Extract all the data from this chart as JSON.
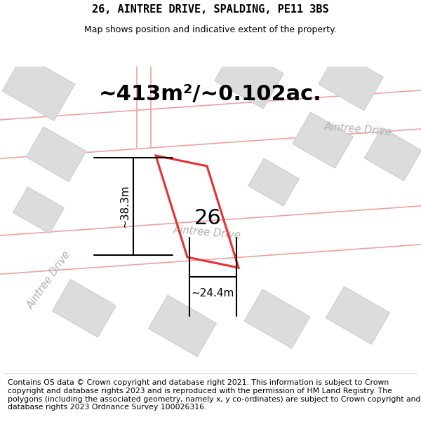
{
  "title": "26, AINTREE DRIVE, SPALDING, PE11 3BS",
  "subtitle": "Map shows position and indicative extent of the property.",
  "area_label": "~413m²/~0.102ac.",
  "label_26": "26",
  "dim_height": "~38.3m",
  "dim_width": "~24.4m",
  "road_label_mid": "Aintree Drive",
  "road_label_right": "Aintree Drive",
  "road_label_left": "Aintree Drive",
  "footer": "Contains OS data © Crown copyright and database right 2021. This information is subject to Crown copyright and database rights 2023 and is reproduced with the permission of HM Land Registry. The polygons (including the associated geometry, namely x, y co-ordinates) are subject to Crown copyright and database rights 2023 Ordnance Survey 100026316.",
  "bg_color": "#ffffff",
  "map_bg": "#f0eeee",
  "building_fill": "#dcdcdc",
  "building_edge": "#cccccc",
  "road_line_color": "#f0a0a0",
  "property_color": "#e83030",
  "title_fontsize": 11,
  "subtitle_fontsize": 9,
  "area_fontsize": 22,
  "label_fontsize": 22,
  "dim_fontsize": 11,
  "road_fontsize": 11,
  "footer_fontsize": 7.8
}
